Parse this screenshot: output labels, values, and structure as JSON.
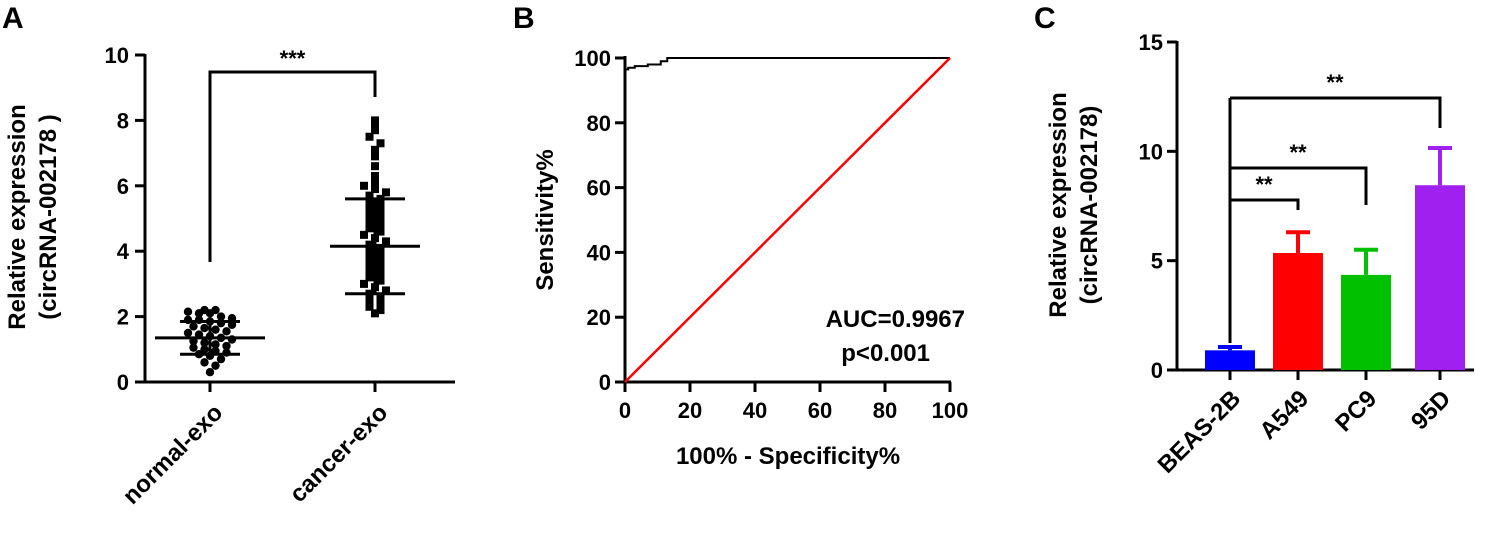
{
  "chart_data": [
    {
      "panel": "A",
      "type": "scatter",
      "ylabel_line1": "Relative expression",
      "ylabel_line2": "(circRNA-002178 )",
      "ylim": [
        0,
        10
      ],
      "yticks": [
        "0",
        "2",
        "4",
        "6",
        "8",
        "10"
      ],
      "categories": [
        "normal-exo",
        "cancer-exo"
      ],
      "significance": "***",
      "groups": [
        {
          "name": "normal-exo",
          "marker": "circle",
          "mean": 1.35,
          "sd": 0.5,
          "values": [
            2.2,
            2.2,
            2.15,
            2.1,
            2.1,
            2.0,
            1.95,
            1.9,
            1.9,
            1.85,
            1.8,
            1.75,
            1.7,
            1.65,
            1.6,
            1.55,
            1.5,
            1.45,
            1.4,
            1.35,
            1.3,
            1.25,
            1.2,
            1.15,
            1.1,
            1.05,
            1.0,
            0.95,
            0.9,
            0.85,
            0.8,
            0.7,
            0.6,
            0.5,
            0.3
          ]
        },
        {
          "name": "cancer-exo",
          "marker": "square",
          "mean": 4.15,
          "sd": 1.45,
          "values": [
            8.0,
            7.9,
            7.7,
            7.5,
            7.3,
            7.1,
            6.9,
            6.6,
            6.3,
            6.1,
            6.0,
            5.9,
            5.8,
            5.7,
            5.6,
            5.5,
            5.4,
            5.3,
            5.2,
            5.1,
            5.0,
            4.9,
            4.8,
            4.7,
            4.6,
            4.5,
            4.4,
            4.3,
            4.2,
            4.1,
            4.0,
            3.9,
            3.8,
            3.7,
            3.6,
            3.5,
            3.4,
            3.3,
            3.2,
            3.1,
            3.0,
            2.9,
            2.8,
            2.7,
            2.6,
            2.5,
            2.4,
            2.3,
            2.2,
            2.1
          ]
        }
      ]
    },
    {
      "panel": "B",
      "type": "line",
      "xlabel": "100% - Specificity%",
      "ylabel": "Sensitivity%",
      "xlim": [
        0,
        100
      ],
      "ylim": [
        0,
        100
      ],
      "xticks": [
        "0",
        "20",
        "40",
        "60",
        "80",
        "100"
      ],
      "yticks": [
        "0",
        "20",
        "40",
        "60",
        "80",
        "100"
      ],
      "annotation_line1": "AUC=0.9967",
      "annotation_line2": "p<0.001",
      "series": [
        {
          "color": "#000000",
          "points": [
            [
              0,
              0
            ],
            [
              0,
              96.5
            ],
            [
              1,
              96.5
            ],
            [
              1,
              97
            ],
            [
              3,
              97
            ],
            [
              3,
              97.5
            ],
            [
              7,
              97.5
            ],
            [
              7,
              98
            ],
            [
              11,
              98
            ],
            [
              11,
              99
            ],
            [
              13,
              99
            ],
            [
              13,
              100
            ],
            [
              100,
              100
            ]
          ]
        },
        {
          "color": "#ff0000",
          "points": [
            [
              0,
              0
            ],
            [
              100,
              100
            ]
          ]
        }
      ]
    },
    {
      "panel": "C",
      "type": "bar",
      "ylabel_line1": "Relative expression",
      "ylabel_line2": "(circRNA-002178)",
      "ylim": [
        0,
        15
      ],
      "yticks": [
        "0",
        "5",
        "10",
        "15"
      ],
      "categories": [
        "BEAS-2B",
        "A549",
        "PC9",
        "95D"
      ],
      "values": [
        0.9,
        5.35,
        4.35,
        8.45
      ],
      "errors": [
        0.15,
        0.95,
        1.15,
        1.7
      ],
      "colors": [
        "#0000ff",
        "#ff0000",
        "#00c000",
        "#a020f0"
      ],
      "comparisons": [
        {
          "from": "BEAS-2B",
          "to": "A549",
          "label": "**"
        },
        {
          "from": "BEAS-2B",
          "to": "PC9",
          "label": "**"
        },
        {
          "from": "BEAS-2B",
          "to": "95D",
          "label": "**"
        }
      ]
    }
  ]
}
